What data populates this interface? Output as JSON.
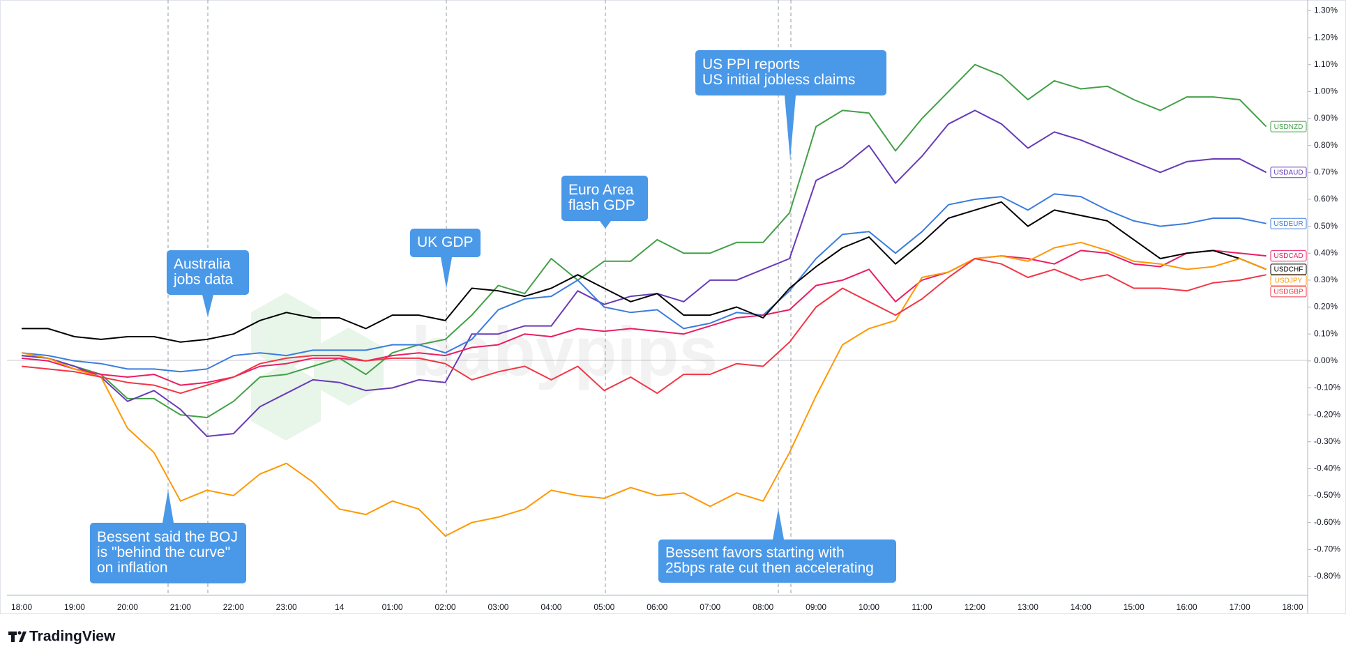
{
  "chart_data": {
    "type": "line",
    "watermark": "babypips",
    "branding": "TradingView",
    "categories": [
      "18:00",
      null,
      "19:00",
      null,
      "20:00",
      null,
      "21:00",
      null,
      "22:00",
      null,
      "23:00",
      null,
      "14",
      null,
      "01:00",
      null,
      "02:00",
      null,
      "03:00",
      null,
      "04:00",
      null,
      "05:00",
      null,
      "06:00",
      null,
      "07:00",
      null,
      "08:00",
      null,
      "09:00",
      null,
      "10:00",
      null,
      "11:00",
      null,
      "12:00",
      null,
      "13:00",
      null,
      "14:00",
      null,
      "15:00",
      null,
      "16:00",
      null,
      "17:00",
      null,
      "18:00"
    ],
    "ylim": [
      -0.87,
      1.34
    ],
    "yticks": [
      {
        "value": 1.3,
        "label": "1.30%"
      },
      {
        "value": 1.2,
        "label": "1.20%"
      },
      {
        "value": 1.1,
        "label": "1.10%"
      },
      {
        "value": 1.0,
        "label": "1.00%"
      },
      {
        "value": 0.9,
        "label": "0.90%"
      },
      {
        "value": 0.8,
        "label": "0.80%"
      },
      {
        "value": 0.7,
        "label": "0.70%"
      },
      {
        "value": 0.6,
        "label": "0.60%"
      },
      {
        "value": 0.5,
        "label": "0.50%"
      },
      {
        "value": 0.4,
        "label": "0.40%"
      },
      {
        "value": 0.3,
        "label": "0.30%"
      },
      {
        "value": 0.2,
        "label": "0.20%"
      },
      {
        "value": 0.1,
        "label": "0.10%"
      },
      {
        "value": 0,
        "label": "0.00%"
      },
      {
        "value": -0.1,
        "label": "-0.10%"
      },
      {
        "value": -0.2,
        "label": "-0.20%"
      },
      {
        "value": -0.3,
        "label": "-0.30%"
      },
      {
        "value": -0.4,
        "label": "-0.40%"
      },
      {
        "value": -0.5,
        "label": "-0.50%"
      },
      {
        "value": -0.6,
        "label": "-0.60%"
      },
      {
        "value": -0.7,
        "label": "-0.70%"
      },
      {
        "value": -0.8,
        "label": "-0.80%"
      }
    ],
    "grid": false,
    "series": [
      {
        "name": "USDNZD",
        "color": "#43a047",
        "values": [
          0.02,
          0.01,
          -0.02,
          -0.05,
          -0.14,
          -0.14,
          -0.2,
          -0.21,
          -0.15,
          -0.06,
          -0.05,
          -0.02,
          0.01,
          -0.05,
          0.03,
          0.06,
          0.08,
          0.17,
          0.28,
          0.25,
          0.38,
          0.3,
          0.37,
          0.37,
          0.45,
          0.4,
          0.4,
          0.44,
          0.44,
          0.55,
          0.87,
          0.93,
          0.92,
          0.78,
          0.9,
          1.0,
          1.1,
          1.06,
          0.97,
          1.04,
          1.01,
          1.02,
          0.97,
          0.93,
          0.98,
          0.98,
          0.97,
          0.87,
          null
        ]
      },
      {
        "name": "USDAUD",
        "color": "#673ab7",
        "values": [
          0.02,
          0.01,
          -0.02,
          -0.06,
          -0.15,
          -0.11,
          -0.18,
          -0.28,
          -0.27,
          -0.17,
          -0.12,
          -0.07,
          -0.08,
          -0.11,
          -0.1,
          -0.07,
          -0.08,
          0.1,
          0.1,
          0.13,
          0.13,
          0.26,
          0.21,
          0.24,
          0.25,
          0.22,
          0.3,
          0.3,
          0.34,
          0.38,
          0.67,
          0.72,
          0.8,
          0.66,
          0.76,
          0.88,
          0.93,
          0.88,
          0.79,
          0.85,
          0.82,
          0.78,
          0.74,
          0.7,
          0.74,
          0.75,
          0.75,
          0.7,
          null
        ]
      },
      {
        "name": "USDEUR",
        "color": "#3b7ddd",
        "values": [
          0.03,
          0.02,
          0.0,
          -0.01,
          -0.03,
          -0.03,
          -0.04,
          -0.03,
          0.02,
          0.03,
          0.02,
          0.04,
          0.04,
          0.04,
          0.06,
          0.06,
          0.03,
          0.08,
          0.19,
          0.23,
          0.24,
          0.3,
          0.2,
          0.18,
          0.19,
          0.12,
          0.14,
          0.18,
          0.17,
          0.26,
          0.38,
          0.47,
          0.48,
          0.4,
          0.48,
          0.58,
          0.6,
          0.61,
          0.56,
          0.62,
          0.61,
          0.56,
          0.52,
          0.5,
          0.51,
          0.53,
          0.53,
          0.51,
          null
        ]
      },
      {
        "name": "USDCAD",
        "color": "#e91e63",
        "values": [
          0.01,
          0.0,
          -0.03,
          -0.05,
          -0.06,
          -0.05,
          -0.09,
          -0.08,
          -0.06,
          -0.02,
          -0.01,
          0.01,
          0.01,
          0.0,
          0.02,
          0.03,
          0.02,
          0.05,
          0.06,
          0.1,
          0.09,
          0.12,
          0.11,
          0.12,
          0.11,
          0.1,
          0.13,
          0.16,
          0.17,
          0.19,
          0.28,
          0.3,
          0.34,
          0.22,
          0.3,
          0.33,
          0.38,
          0.39,
          0.38,
          0.36,
          0.41,
          0.4,
          0.36,
          0.35,
          0.4,
          0.41,
          0.4,
          0.39,
          null
        ]
      },
      {
        "name": "USDCHF",
        "color": "#000000",
        "values": [
          0.12,
          0.12,
          0.09,
          0.08,
          0.09,
          0.09,
          0.07,
          0.08,
          0.1,
          0.15,
          0.18,
          0.16,
          0.16,
          0.12,
          0.17,
          0.17,
          0.15,
          0.27,
          0.26,
          0.24,
          0.27,
          0.32,
          0.27,
          0.22,
          0.25,
          0.17,
          0.17,
          0.2,
          0.16,
          0.27,
          0.35,
          0.42,
          0.46,
          0.36,
          0.44,
          0.53,
          0.56,
          0.59,
          0.5,
          0.56,
          0.54,
          0.52,
          0.45,
          0.38,
          0.4,
          0.41,
          0.38,
          0.34,
          null
        ]
      },
      {
        "name": "USDJPY",
        "color": "#ff9800",
        "values": [
          0.03,
          0.01,
          -0.03,
          -0.06,
          -0.25,
          -0.34,
          -0.52,
          -0.48,
          -0.5,
          -0.42,
          -0.38,
          -0.45,
          -0.55,
          -0.57,
          -0.52,
          -0.55,
          -0.65,
          -0.6,
          -0.58,
          -0.55,
          -0.48,
          -0.5,
          -0.51,
          -0.47,
          -0.5,
          -0.49,
          -0.54,
          -0.49,
          -0.52,
          -0.34,
          -0.13,
          0.06,
          0.12,
          0.15,
          0.31,
          0.33,
          0.38,
          0.39,
          0.37,
          0.42,
          0.44,
          0.41,
          0.37,
          0.36,
          0.34,
          0.35,
          0.38,
          0.34,
          null
        ]
      },
      {
        "name": "USDGBP",
        "color": "#f23645",
        "values": [
          -0.02,
          -0.03,
          -0.04,
          -0.06,
          -0.08,
          -0.09,
          -0.12,
          -0.09,
          -0.06,
          -0.01,
          0.01,
          0.02,
          0.02,
          0.0,
          0.01,
          0.01,
          -0.01,
          -0.07,
          -0.04,
          -0.02,
          -0.07,
          -0.02,
          -0.11,
          -0.06,
          -0.12,
          -0.05,
          -0.05,
          -0.01,
          -0.02,
          0.07,
          0.2,
          0.27,
          0.22,
          0.17,
          0.23,
          0.31,
          0.38,
          0.36,
          0.31,
          0.34,
          0.3,
          0.32,
          0.27,
          0.27,
          0.26,
          0.29,
          0.3,
          0.32,
          null
        ]
      }
    ],
    "annotations": [
      {
        "lines": [
          "Australia",
          "jobs data"
        ]
      },
      {
        "lines": [
          "UK GDP"
        ]
      },
      {
        "lines": [
          "Euro Area",
          "flash GDP"
        ]
      },
      {
        "lines": [
          "US PPI reports",
          "US initial jobless claims"
        ]
      },
      {
        "lines": [
          "Bessent said the BOJ",
          "is \"behind the curve\"",
          "on inflation"
        ]
      },
      {
        "lines": [
          "Bessent favors starting with",
          "25bps rate cut then accelerating"
        ]
      }
    ]
  }
}
